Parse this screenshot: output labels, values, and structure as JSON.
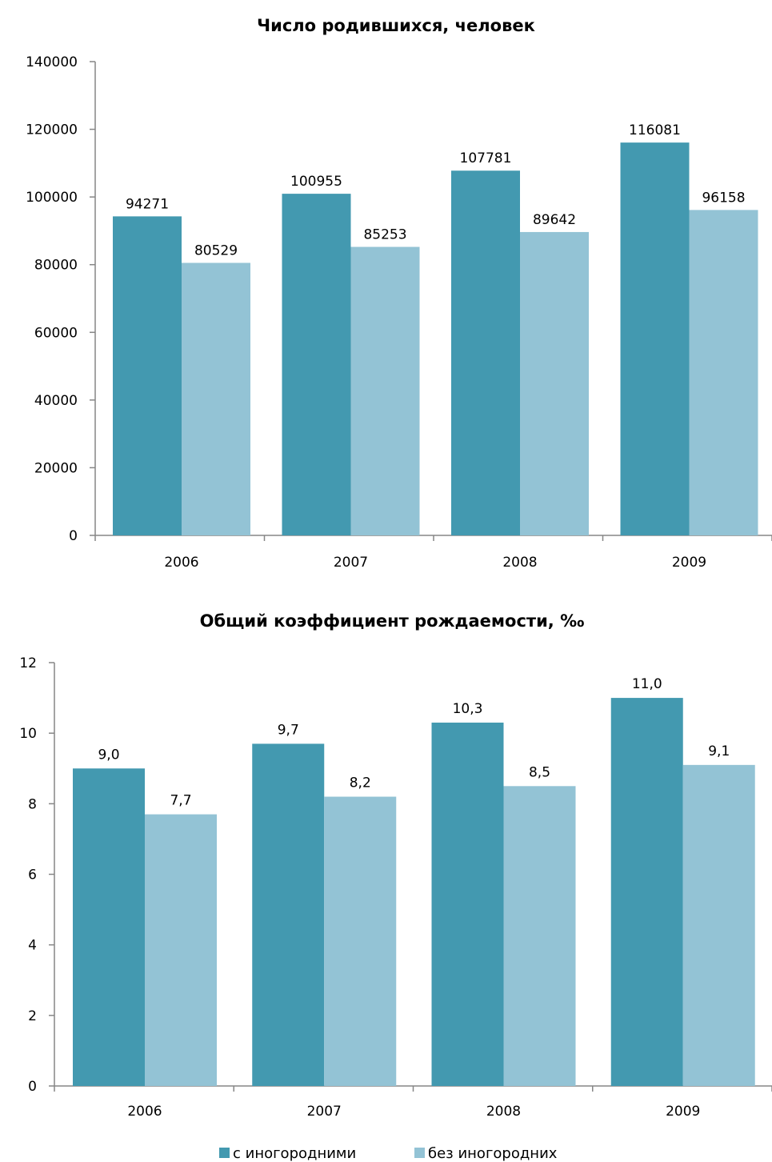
{
  "chart_data": [
    {
      "type": "bar",
      "title": "Число родившихся, человек",
      "categories": [
        "2006",
        "2007",
        "2008",
        "2009"
      ],
      "series": [
        {
          "name": "с иногородними",
          "values": [
            94271,
            100955,
            107781,
            116081
          ],
          "labels": [
            "94271",
            "100955",
            "107781",
            "116081"
          ]
        },
        {
          "name": "без иногородних",
          "values": [
            80529,
            85253,
            89642,
            96158
          ],
          "labels": [
            "80529",
            "85253",
            "89642",
            "96158"
          ]
        }
      ],
      "ylim": [
        0,
        140000
      ],
      "yticks": [
        "0",
        "20000",
        "40000",
        "60000",
        "80000",
        "100000",
        "120000",
        "140000"
      ],
      "grid": false
    },
    {
      "type": "bar",
      "title": "Общий коэффициент рождаемости, ‰",
      "categories": [
        "2006",
        "2007",
        "2008",
        "2009"
      ],
      "series": [
        {
          "name": "с иногородними",
          "values": [
            9.0,
            9.7,
            10.3,
            11.0
          ],
          "labels": [
            "9,0",
            "9,7",
            "10,3",
            "11,0"
          ]
        },
        {
          "name": "без иногородних",
          "values": [
            7.7,
            8.2,
            8.5,
            9.1
          ],
          "labels": [
            "7,7",
            "8,2",
            "8,5",
            "9,1"
          ]
        }
      ],
      "ylim": [
        0,
        12
      ],
      "yticks": [
        "0",
        "2",
        "4",
        "6",
        "8",
        "10",
        "12"
      ],
      "grid": false
    }
  ],
  "legend": {
    "placement": "bottom",
    "items": [
      {
        "label": "с иногородними",
        "color": "#4399B0"
      },
      {
        "label": "без иногородних",
        "color": "#93C3D5"
      }
    ]
  },
  "colors": {
    "series1": "#4399B0",
    "series2": "#93C3D5",
    "axis": "#868686"
  }
}
